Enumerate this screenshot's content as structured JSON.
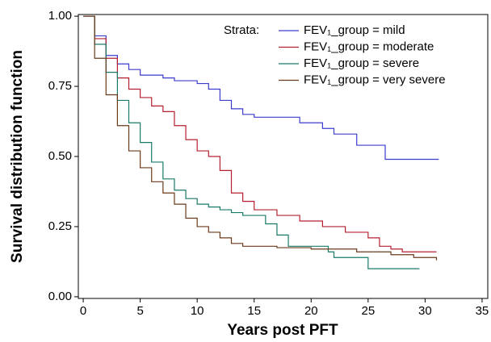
{
  "chart_data": {
    "type": "step",
    "xlabel": "Years post PFT",
    "ylabel": "Survival distribution function",
    "legend_title": "Strata:",
    "legend": "upper right",
    "xlim": [
      -0.43,
      35.5
    ],
    "ylim": [
      -0.006,
      1.006
    ],
    "xticks": [
      0,
      5,
      10,
      15,
      20,
      25,
      30,
      35
    ],
    "yticks": [
      {
        "value": 0,
        "label": "0.00"
      },
      {
        "value": 0.25,
        "label": "0.25"
      },
      {
        "value": 0.5,
        "label": "0.50"
      },
      {
        "value": 0.75,
        "label": "0.75"
      },
      {
        "value": 1,
        "label": "1.00"
      }
    ],
    "series": [
      {
        "name": "FEV₁_group = mild",
        "color": "#3c3cd0",
        "x": [
          0,
          1,
          2,
          3,
          4,
          5,
          7,
          8,
          10,
          11,
          12,
          13,
          14,
          15,
          19,
          21,
          22,
          24,
          26.5,
          31.2
        ],
        "values": [
          1,
          0.93,
          0.86,
          0.83,
          0.81,
          0.79,
          0.78,
          0.77,
          0.76,
          0.74,
          0.7,
          0.67,
          0.65,
          0.64,
          0.62,
          0.6,
          0.58,
          0.54,
          0.49,
          0.49
        ]
      },
      {
        "name": "FEV₁_group = moderate",
        "color": "#b52030",
        "x": [
          0,
          1,
          2,
          3,
          4,
          5,
          6,
          7,
          8,
          9,
          10,
          11,
          12,
          13,
          14,
          15,
          17,
          19,
          21,
          23,
          25,
          26,
          27,
          28,
          31
        ],
        "values": [
          1,
          0.92,
          0.85,
          0.78,
          0.74,
          0.71,
          0.68,
          0.66,
          0.61,
          0.56,
          0.52,
          0.5,
          0.45,
          0.37,
          0.34,
          0.31,
          0.29,
          0.27,
          0.25,
          0.23,
          0.21,
          0.18,
          0.17,
          0.16,
          0.16
        ]
      },
      {
        "name": "FEV₁_group = severe",
        "color": "#1a7a68",
        "x": [
          0,
          1,
          2,
          3,
          4,
          5,
          6,
          7,
          8,
          9,
          10,
          11,
          12,
          13,
          14,
          16,
          17,
          18,
          21.5,
          22,
          25,
          29.5
        ],
        "values": [
          1,
          0.9,
          0.8,
          0.7,
          0.62,
          0.55,
          0.48,
          0.42,
          0.38,
          0.35,
          0.33,
          0.32,
          0.31,
          0.3,
          0.29,
          0.26,
          0.22,
          0.18,
          0.16,
          0.14,
          0.1,
          0.1
        ]
      },
      {
        "name": "FEV₁_group = very severe",
        "color": "#6b3a1a",
        "x": [
          0,
          1,
          2,
          3,
          4,
          5,
          6,
          7,
          8,
          9,
          10,
          11,
          12,
          13,
          14,
          17,
          20,
          24,
          27,
          29,
          31
        ],
        "values": [
          1,
          0.85,
          0.72,
          0.61,
          0.52,
          0.46,
          0.41,
          0.37,
          0.33,
          0.28,
          0.25,
          0.23,
          0.21,
          0.19,
          0.18,
          0.175,
          0.17,
          0.16,
          0.15,
          0.14,
          0.13
        ]
      }
    ]
  }
}
